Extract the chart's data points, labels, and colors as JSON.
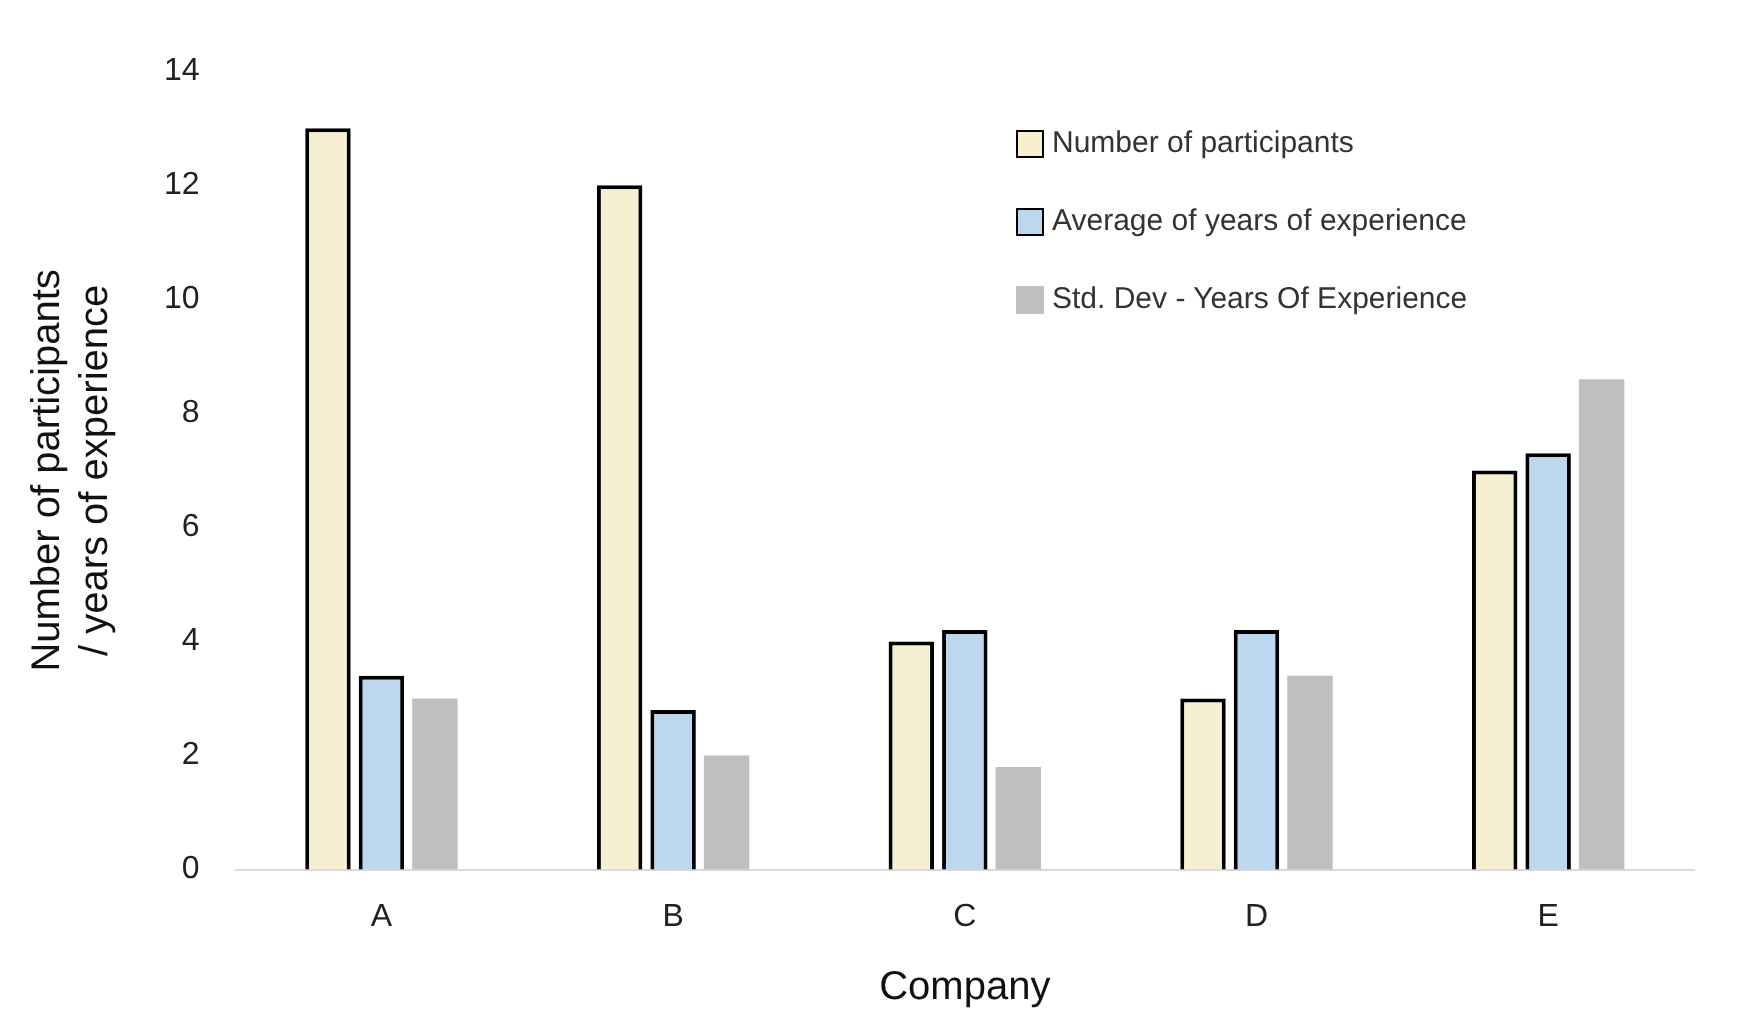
{
  "chart_data": {
    "type": "bar",
    "xlabel": "Company",
    "ylabel": "Number of participants\n/ years of experience",
    "categories": [
      "A",
      "B",
      "C",
      "D",
      "E"
    ],
    "series": [
      {
        "name": "Number of participants",
        "color": "#f6efd2",
        "values": [
          13,
          12,
          4,
          3,
          7
        ]
      },
      {
        "name": "Average of years  of experience",
        "color": "#bdd7ee",
        "values": [
          3.4,
          2.8,
          4.2,
          4.2,
          7.3
        ]
      },
      {
        "name": "Std. Dev - Years Of Experience",
        "color": "#bfbfbf",
        "values": [
          3.0,
          2.0,
          1.8,
          3.4,
          8.6
        ]
      }
    ],
    "ylim": [
      0,
      14
    ],
    "yticks": [
      0,
      2,
      4,
      6,
      8,
      10,
      12,
      14
    ],
    "grid": false,
    "legend": "top right"
  }
}
